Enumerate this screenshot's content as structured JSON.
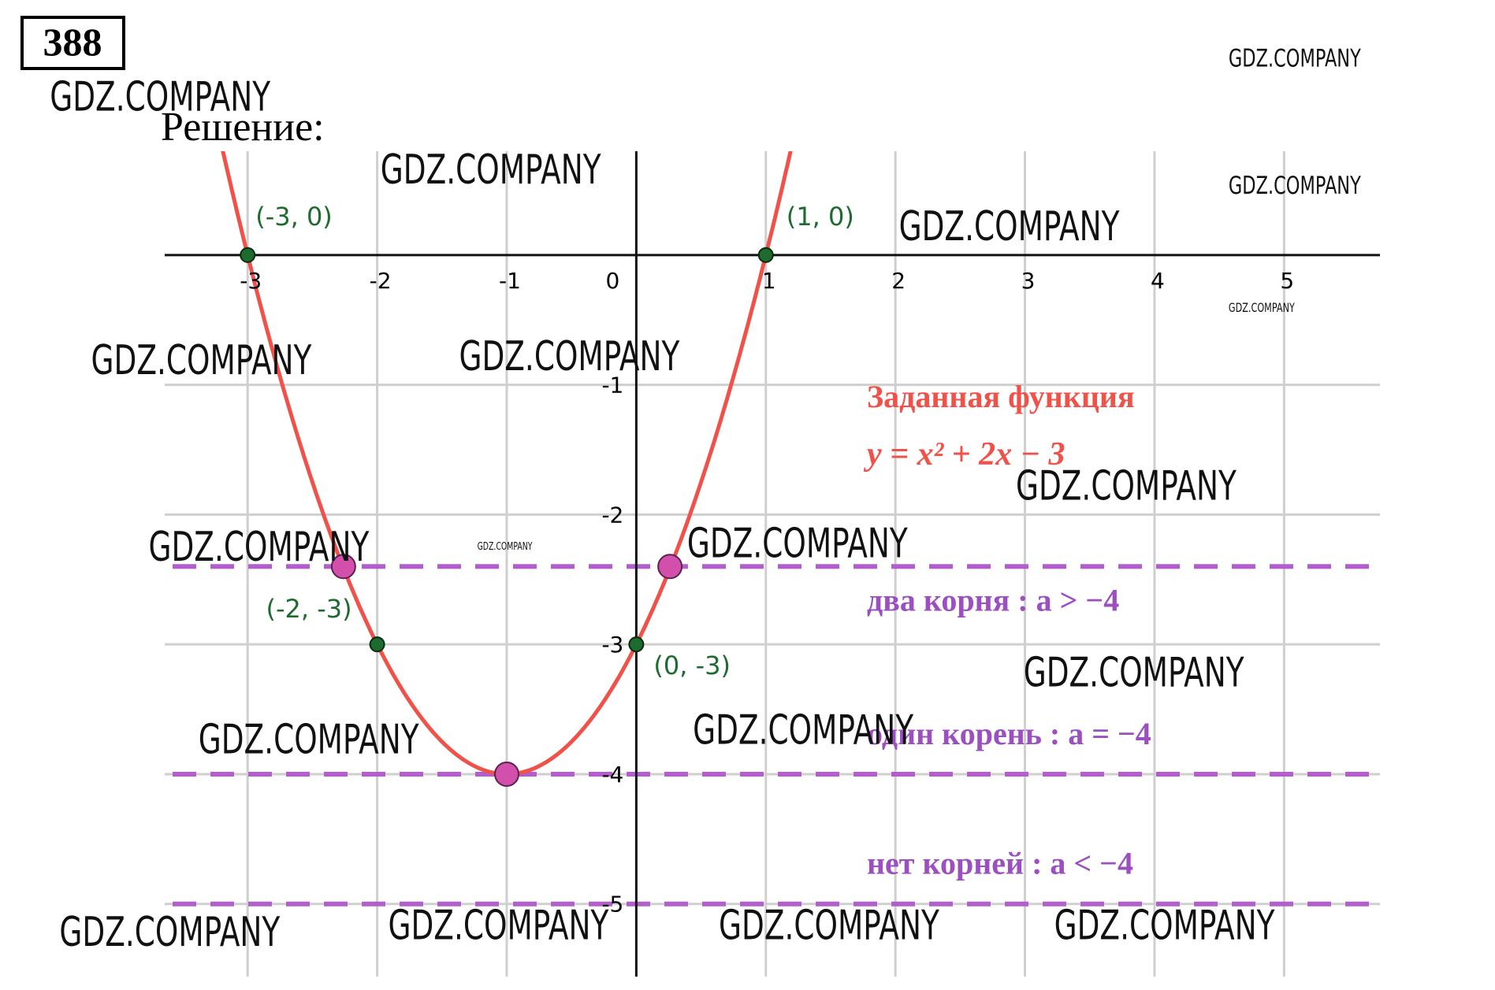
{
  "header": {
    "number": "388",
    "label": "Решение:"
  },
  "chart_data": {
    "type": "function",
    "title": "Заданная функция",
    "formula": "y = x² + 2x − 3",
    "color": "#f0524a",
    "xlim": [
      -3.64,
      5.74
    ],
    "ylim": [
      -5.56,
      0.8
    ],
    "xticks": [
      -3,
      -2,
      -1,
      0,
      1,
      2,
      3,
      4,
      5
    ],
    "yticks": [
      -1,
      -2,
      -3,
      -4,
      -5
    ],
    "grid": true,
    "points": [
      {
        "x": -3,
        "y": 0,
        "label": "(-3, 0)"
      },
      {
        "x": 1,
        "y": 0,
        "label": "(1, 0)"
      },
      {
        "x": -2,
        "y": -3,
        "label": "(-2, -3)"
      },
      {
        "x": 0,
        "y": -3,
        "label": "(0, -3)"
      }
    ],
    "intersections": [
      {
        "x": -2.26,
        "y": -2.4
      },
      {
        "x": -1,
        "y": -4
      },
      {
        "x": 0.26,
        "y": -2.4
      }
    ],
    "levels": [
      {
        "y": -2.4,
        "label": "два корня :  a > −4"
      },
      {
        "y": -4,
        "label": "один корень :  a = −4"
      },
      {
        "y": -5,
        "label": "нет корней :  a < −4"
      }
    ],
    "watermarks": [
      "GDZ.COMPANY",
      "GDZ.COMPANY",
      "GDZ.COMPANY",
      "GDZ.COMPANY",
      "GDZ.COMPANY",
      "GDZ.COMPANY",
      "GDZ.COMPANY",
      "GDZ.COMPANY",
      "GDZ.COMPANY",
      "GDZ.COMPANY",
      "GDZ.COMPANY",
      "GDZ.COMPANY",
      "GDZ.COMPANY",
      "GDZ.COMPANY",
      "GDZ.COMPANY",
      "GDZ.COMPANY",
      "GDZ.COMPANY",
      "GDZ.COMPANY",
      "GDZ.COMPANY"
    ]
  }
}
